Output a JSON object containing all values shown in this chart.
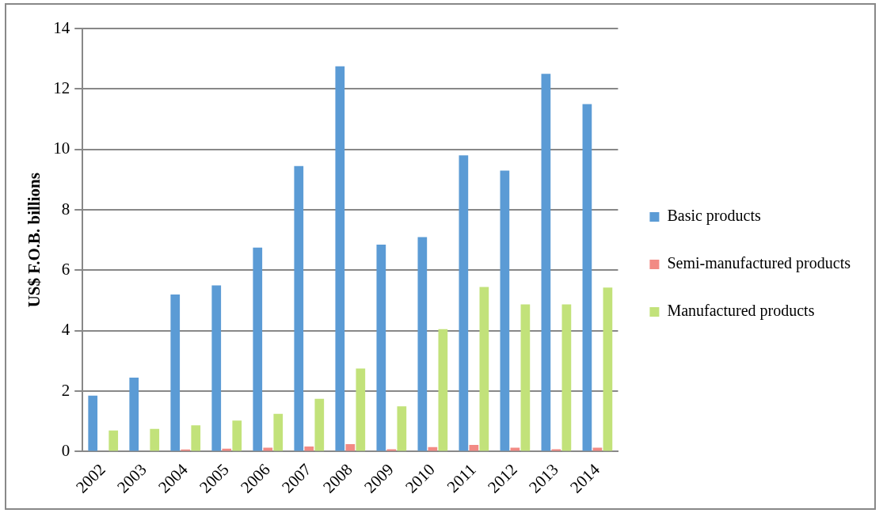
{
  "chart_data": {
    "type": "bar",
    "ylabel": "US$ F.O.B. billions",
    "categories": [
      "2002",
      "2003",
      "2004",
      "2005",
      "2006",
      "2007",
      "2008",
      "2009",
      "2010",
      "2011",
      "2012",
      "2013",
      "2014"
    ],
    "series": [
      {
        "name": "Basic products",
        "color": "#5b9bd5",
        "values": [
          1.85,
          2.45,
          5.2,
          5.5,
          6.75,
          9.45,
          12.75,
          6.85,
          7.1,
          9.8,
          9.3,
          12.5,
          11.5
        ]
      },
      {
        "name": "Semi-manufactured products",
        "color": "#f28a84",
        "values": [
          null,
          null,
          0.07,
          0.1,
          0.13,
          0.17,
          0.25,
          0.08,
          0.15,
          0.22,
          0.13,
          0.08,
          0.13
        ]
      },
      {
        "name": "Manufactured products",
        "color": "#c2e27a",
        "values": [
          0.7,
          0.75,
          0.87,
          1.03,
          1.25,
          1.75,
          2.75,
          1.5,
          4.05,
          5.45,
          4.87,
          4.87,
          5.43
        ]
      }
    ],
    "ylim": [
      0,
      14
    ],
    "yticks": [
      0,
      2,
      4,
      6,
      8,
      10,
      12,
      14
    ],
    "grid": "y",
    "legend": "right"
  }
}
